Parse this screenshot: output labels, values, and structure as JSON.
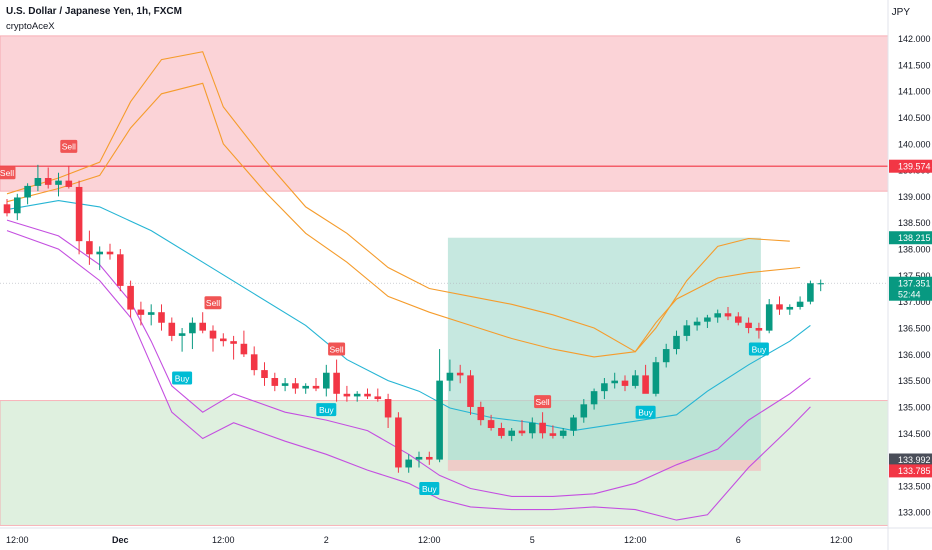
{
  "header": {
    "symbol_line": "U.S. Dollar / Japanese Yen, 1h, FXCM",
    "indicator": "cryptoAceX",
    "currency": "JPY"
  },
  "colors": {
    "up": "#089981",
    "down": "#f23645",
    "ma": "#26b5d4",
    "band_outer": "#c44fe0",
    "band_inner": "#f59c2c",
    "resistance_zone": "#fbd3d7",
    "support_zone": "#dff0df",
    "trade_box": "#a8dcd0",
    "stop_box": "#efc8c5"
  },
  "price_labels": [
    {
      "text": "139.574",
      "price": 139.574,
      "bg": "#f23645",
      "fg": "#ffffff"
    },
    {
      "text": "138.215",
      "price": 138.215,
      "bg": "#089981",
      "fg": "#ffffff"
    },
    {
      "text": "137.351",
      "sub": "52:44",
      "price": 137.351,
      "bg": "#089981",
      "fg": "#ffffff"
    },
    {
      "text": "133.992",
      "price": 133.992,
      "bg": "#4a4e59",
      "fg": "#ffffff"
    },
    {
      "text": "133.785",
      "price": 133.785,
      "bg": "#f23645",
      "fg": "#ffffff"
    }
  ],
  "chart_data": {
    "type": "candlestick",
    "symbol": "U.S. Dollar / Japanese Yen",
    "timeframe": "1h",
    "y_axis": {
      "min": 132.7,
      "max": 142.2,
      "ticks": [
        "133.000",
        "133.500",
        "134.000",
        "134.500",
        "135.000",
        "135.500",
        "136.000",
        "136.500",
        "137.000",
        "137.500",
        "138.000",
        "138.500",
        "139.000",
        "139.500",
        "140.000",
        "140.500",
        "141.000",
        "141.500",
        "142.000"
      ]
    },
    "x_axis": {
      "ticks": [
        {
          "label": "12:00",
          "i": 1
        },
        {
          "label": "Dec",
          "i": 11
        },
        {
          "label": "12:00",
          "i": 21
        },
        {
          "label": "2",
          "i": 31
        },
        {
          "label": "12:00",
          "i": 41
        },
        {
          "label": "5",
          "i": 51
        },
        {
          "label": "12:00",
          "i": 61
        },
        {
          "label": "6",
          "i": 71
        },
        {
          "label": "12:00",
          "i": 81
        }
      ]
    },
    "candles": [
      [
        138.85,
        138.95,
        138.62,
        138.68
      ],
      [
        138.68,
        139.05,
        138.55,
        138.98
      ],
      [
        138.98,
        139.25,
        138.85,
        139.2
      ],
      [
        139.2,
        139.6,
        139.1,
        139.35
      ],
      [
        139.35,
        139.55,
        139.15,
        139.22
      ],
      [
        139.22,
        139.45,
        139.0,
        139.3
      ],
      [
        139.3,
        139.58,
        139.15,
        139.18
      ],
      [
        139.18,
        139.3,
        137.9,
        138.15
      ],
      [
        138.15,
        138.35,
        137.7,
        137.9
      ],
      [
        137.9,
        138.05,
        137.6,
        137.95
      ],
      [
        137.95,
        138.1,
        137.8,
        137.9
      ],
      [
        137.9,
        138.0,
        137.2,
        137.3
      ],
      [
        137.3,
        137.4,
        136.7,
        136.85
      ],
      [
        136.85,
        137.0,
        136.55,
        136.75
      ],
      [
        136.75,
        136.95,
        136.55,
        136.8
      ],
      [
        136.8,
        136.95,
        136.45,
        136.6
      ],
      [
        136.6,
        136.7,
        136.25,
        136.35
      ],
      [
        136.35,
        136.5,
        136.05,
        136.4
      ],
      [
        136.4,
        136.7,
        136.1,
        136.6
      ],
      [
        136.6,
        136.8,
        136.4,
        136.45
      ],
      [
        136.45,
        136.55,
        136.05,
        136.3
      ],
      [
        136.3,
        136.4,
        136.15,
        136.25
      ],
      [
        136.25,
        136.35,
        135.9,
        136.2
      ],
      [
        136.2,
        136.45,
        135.95,
        136.0
      ],
      [
        136.0,
        136.15,
        135.6,
        135.7
      ],
      [
        135.7,
        135.85,
        135.4,
        135.55
      ],
      [
        135.55,
        135.65,
        135.3,
        135.4
      ],
      [
        135.4,
        135.55,
        135.3,
        135.45
      ],
      [
        135.45,
        135.55,
        135.25,
        135.35
      ],
      [
        135.35,
        135.45,
        135.25,
        135.4
      ],
      [
        135.4,
        135.55,
        135.3,
        135.35
      ],
      [
        135.35,
        135.8,
        135.2,
        135.65
      ],
      [
        135.65,
        135.9,
        135.1,
        135.25
      ],
      [
        135.25,
        135.4,
        135.1,
        135.2
      ],
      [
        135.2,
        135.3,
        135.1,
        135.25
      ],
      [
        135.25,
        135.35,
        135.15,
        135.2
      ],
      [
        135.2,
        135.35,
        135.1,
        135.15
      ],
      [
        135.15,
        135.25,
        134.6,
        134.8
      ],
      [
        134.8,
        134.9,
        133.75,
        133.85
      ],
      [
        133.85,
        134.1,
        133.75,
        134.0
      ],
      [
        134.0,
        134.15,
        133.85,
        134.05
      ],
      [
        134.05,
        134.15,
        133.9,
        134.0
      ],
      [
        134.0,
        136.1,
        133.95,
        135.5
      ],
      [
        135.5,
        135.9,
        135.3,
        135.65
      ],
      [
        135.65,
        135.8,
        135.45,
        135.6
      ],
      [
        135.6,
        135.7,
        134.85,
        135.0
      ],
      [
        135.0,
        135.1,
        134.65,
        134.75
      ],
      [
        134.75,
        134.85,
        134.55,
        134.6
      ],
      [
        134.6,
        134.7,
        134.4,
        134.45
      ],
      [
        134.45,
        134.6,
        134.35,
        134.55
      ],
      [
        134.55,
        134.75,
        134.45,
        134.5
      ],
      [
        134.5,
        134.8,
        134.4,
        134.7
      ],
      [
        134.7,
        134.9,
        134.4,
        134.5
      ],
      [
        134.5,
        134.65,
        134.4,
        134.45
      ],
      [
        134.45,
        134.6,
        134.4,
        134.55
      ],
      [
        134.55,
        134.85,
        134.45,
        134.8
      ],
      [
        134.8,
        135.15,
        134.7,
        135.05
      ],
      [
        135.05,
        135.35,
        134.95,
        135.3
      ],
      [
        135.3,
        135.55,
        135.15,
        135.45
      ],
      [
        135.45,
        135.65,
        135.35,
        135.5
      ],
      [
        135.5,
        135.6,
        135.3,
        135.4
      ],
      [
        135.4,
        135.7,
        135.35,
        135.6
      ],
      [
        135.6,
        135.8,
        135.3,
        135.25
      ],
      [
        135.25,
        135.95,
        135.2,
        135.85
      ],
      [
        135.85,
        136.2,
        135.75,
        136.1
      ],
      [
        136.1,
        136.45,
        136.0,
        136.35
      ],
      [
        136.35,
        136.65,
        136.25,
        136.55
      ],
      [
        136.55,
        136.7,
        136.45,
        136.62
      ],
      [
        136.62,
        136.75,
        136.5,
        136.7
      ],
      [
        136.7,
        136.85,
        136.6,
        136.78
      ],
      [
        136.78,
        136.9,
        136.65,
        136.72
      ],
      [
        136.72,
        136.8,
        136.55,
        136.6
      ],
      [
        136.6,
        136.7,
        136.4,
        136.5
      ],
      [
        136.5,
        136.6,
        136.3,
        136.45
      ],
      [
        136.45,
        137.05,
        136.4,
        136.95
      ],
      [
        136.95,
        137.1,
        136.75,
        136.85
      ],
      [
        136.85,
        136.95,
        136.75,
        136.9
      ],
      [
        136.9,
        137.1,
        136.85,
        137.0
      ],
      [
        137.0,
        137.4,
        136.95,
        137.35
      ],
      [
        137.35,
        137.42,
        137.2,
        137.35
      ]
    ],
    "signals": [
      {
        "label": "Sell",
        "i": 0,
        "price": 139.45
      },
      {
        "label": "Sell",
        "i": 6,
        "price": 139.95
      },
      {
        "label": "Sell",
        "i": 20,
        "price": 136.98
      },
      {
        "label": "Buy",
        "i": 17,
        "price": 135.55
      },
      {
        "label": "Sell",
        "i": 32,
        "price": 136.1
      },
      {
        "label": "Buy",
        "i": 31,
        "price": 134.95
      },
      {
        "label": "Buy",
        "i": 41,
        "price": 133.45
      },
      {
        "label": "Sell",
        "i": 52,
        "price": 135.1
      },
      {
        "label": "Buy",
        "i": 62,
        "price": 134.9
      },
      {
        "label": "Buy",
        "i": 73,
        "price": 136.1
      }
    ],
    "levels": [
      {
        "name": "resistance",
        "price": 139.574
      },
      {
        "name": "resistance_zone",
        "from": 139.1,
        "to": 142.05
      },
      {
        "name": "support_zone",
        "from": 132.75,
        "to": 135.12
      }
    ],
    "position": {
      "entry": 133.992,
      "target": 138.215,
      "stop": 133.785,
      "start_i": 43,
      "end_i": 73
    },
    "ma": [
      [
        0,
        138.75
      ],
      [
        5,
        138.92
      ],
      [
        9,
        138.8
      ],
      [
        14,
        138.35
      ],
      [
        19,
        137.75
      ],
      [
        24,
        137.15
      ],
      [
        29,
        136.55
      ],
      [
        33,
        135.9
      ],
      [
        37,
        135.5
      ],
      [
        40,
        135.3
      ],
      [
        43,
        134.98
      ],
      [
        47,
        134.8
      ],
      [
        51,
        134.7
      ],
      [
        55,
        134.55
      ],
      [
        60,
        134.7
      ],
      [
        65,
        134.85
      ],
      [
        68,
        135.3
      ],
      [
        72,
        135.8
      ],
      [
        76,
        136.25
      ],
      [
        78,
        136.55
      ]
    ],
    "upper_inner": [
      [
        0,
        138.9
      ],
      [
        5,
        139.15
      ],
      [
        9,
        139.4
      ],
      [
        12,
        140.3
      ],
      [
        15,
        140.95
      ],
      [
        19,
        141.15
      ],
      [
        21,
        140.0
      ],
      [
        25,
        139.1
      ],
      [
        29,
        138.3
      ],
      [
        33,
        137.75
      ],
      [
        37,
        137.1
      ],
      [
        41,
        136.8
      ],
      [
        45,
        136.55
      ],
      [
        49,
        136.3
      ],
      [
        53,
        136.1
      ],
      [
        57,
        135.95
      ],
      [
        61,
        136.05
      ],
      [
        63,
        136.5
      ],
      [
        66,
        137.4
      ],
      [
        69,
        138.05
      ],
      [
        72,
        138.2
      ],
      [
        76,
        138.15
      ]
    ],
    "upper_outer": [
      [
        0,
        139.05
      ],
      [
        5,
        139.35
      ],
      [
        9,
        139.65
      ],
      [
        12,
        140.8
      ],
      [
        15,
        141.6
      ],
      [
        19,
        141.75
      ],
      [
        21,
        140.7
      ],
      [
        25,
        139.7
      ],
      [
        29,
        138.8
      ],
      [
        33,
        138.3
      ],
      [
        37,
        137.65
      ],
      [
        41,
        137.25
      ],
      [
        45,
        137.1
      ],
      [
        49,
        136.95
      ],
      [
        53,
        136.75
      ],
      [
        57,
        136.5
      ],
      [
        61,
        136.05
      ],
      [
        63,
        136.6
      ],
      [
        65,
        137.05
      ],
      [
        69,
        137.45
      ],
      [
        72,
        137.55
      ],
      [
        77,
        137.65
      ]
    ],
    "lower_inner": [
      [
        0,
        138.55
      ],
      [
        5,
        138.25
      ],
      [
        9,
        137.7
      ],
      [
        12,
        137.0
      ],
      [
        14,
        136.25
      ],
      [
        16,
        135.4
      ],
      [
        19,
        134.9
      ],
      [
        22,
        135.25
      ],
      [
        27,
        134.9
      ],
      [
        31,
        134.75
      ],
      [
        35,
        134.55
      ],
      [
        39,
        134.1
      ],
      [
        42,
        133.7
      ],
      [
        45,
        133.45
      ],
      [
        49,
        133.3
      ],
      [
        53,
        133.3
      ],
      [
        57,
        133.35
      ],
      [
        61,
        133.55
      ],
      [
        65,
        133.9
      ],
      [
        69,
        134.2
      ],
      [
        72,
        134.75
      ],
      [
        76,
        135.25
      ],
      [
        78,
        135.55
      ]
    ],
    "lower_outer": [
      [
        0,
        138.35
      ],
      [
        5,
        138.0
      ],
      [
        9,
        137.4
      ],
      [
        12,
        136.7
      ],
      [
        14,
        135.8
      ],
      [
        16,
        134.9
      ],
      [
        19,
        134.4
      ],
      [
        22,
        134.7
      ],
      [
        27,
        134.35
      ],
      [
        31,
        134.1
      ],
      [
        35,
        133.8
      ],
      [
        39,
        133.55
      ],
      [
        42,
        133.25
      ],
      [
        45,
        133.1
      ],
      [
        49,
        133.05
      ],
      [
        53,
        133.05
      ],
      [
        57,
        133.1
      ],
      [
        61,
        133.05
      ],
      [
        65,
        132.85
      ],
      [
        68,
        132.95
      ],
      [
        72,
        133.85
      ],
      [
        76,
        134.6
      ],
      [
        78,
        135.0
      ]
    ]
  }
}
